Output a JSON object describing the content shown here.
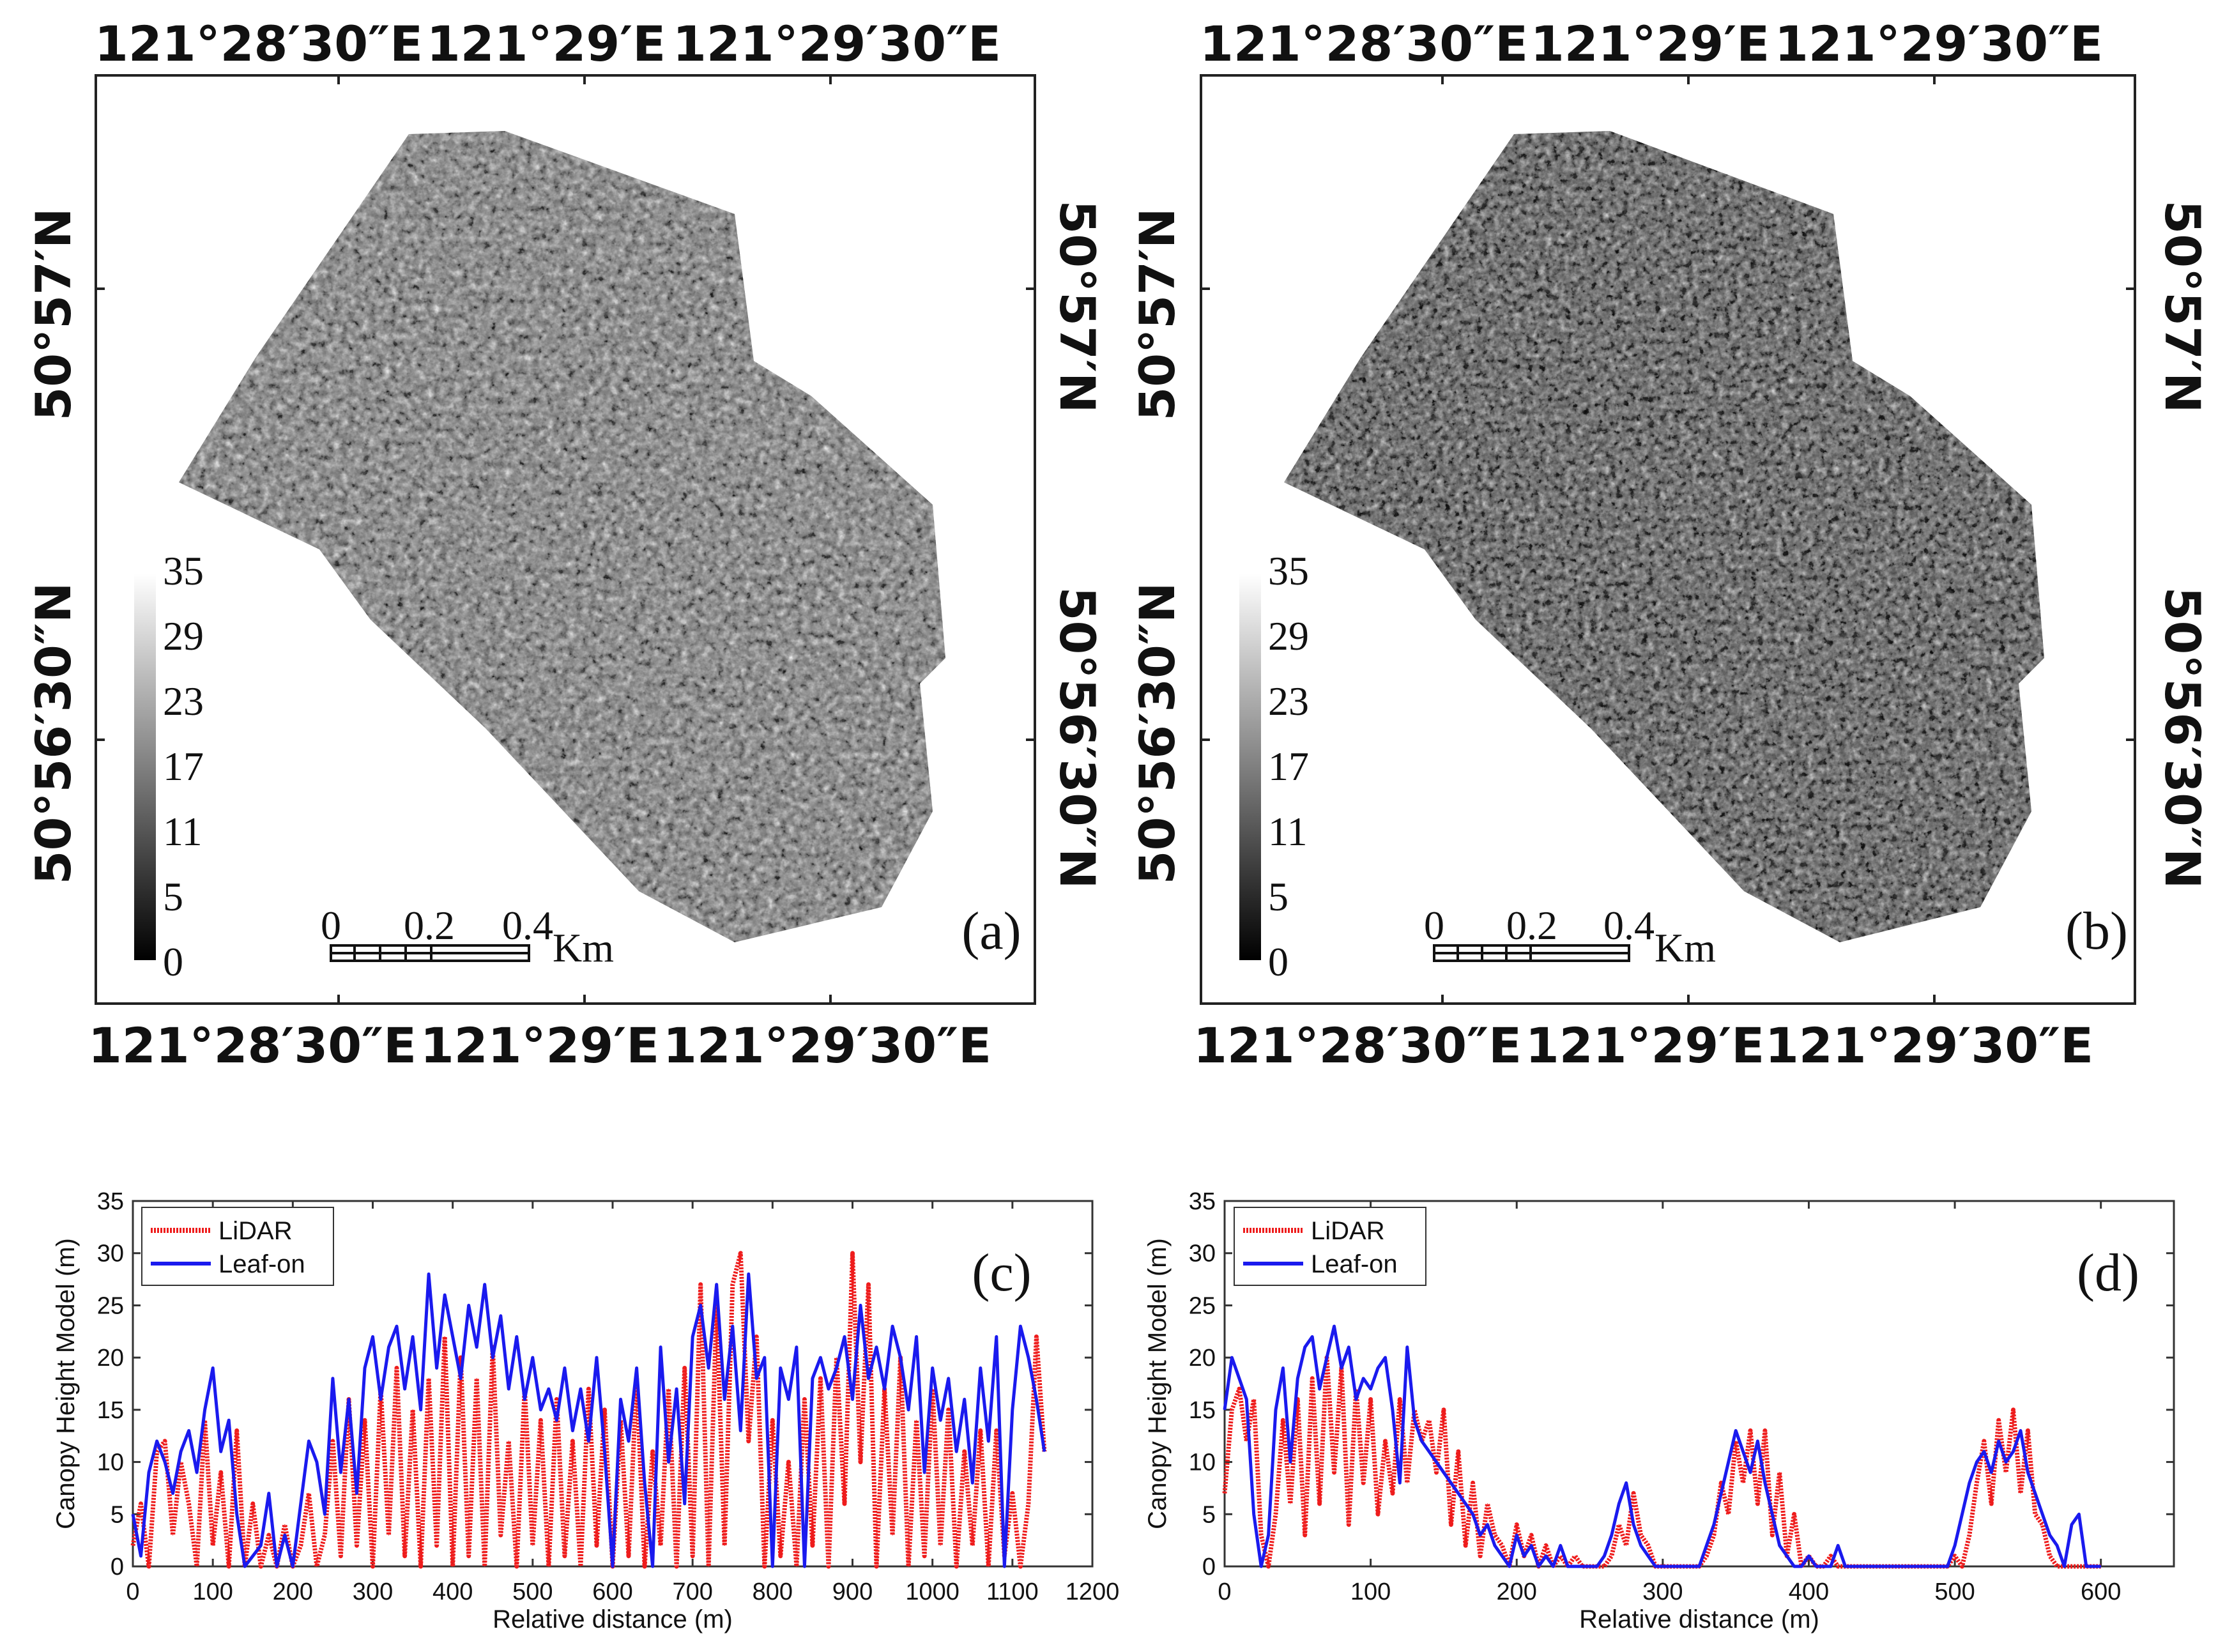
{
  "map_panels": [
    {
      "panel_label": "(a)",
      "top_lon_labels": [
        "121°28′30″E",
        "121°29′E",
        "121°29′30″E"
      ],
      "bottom_lon_labels": [
        "121°28′30″E",
        "121°29′E",
        "121°29′30″E"
      ],
      "left_lat_labels": [
        "50°57′N",
        "50°56′30″N"
      ],
      "right_lat_labels": [
        "50°57′N",
        "50°56′30″N"
      ],
      "colorbar_ticks": [
        "35",
        "29",
        "23",
        "17",
        "11",
        "5",
        "0"
      ],
      "scalebar": {
        "ticks": [
          "0",
          "0.2",
          "0.4"
        ],
        "unit": "Km"
      }
    },
    {
      "panel_label": "(b)",
      "top_lon_labels": [
        "121°28′30″E",
        "121°29′E",
        "121°29′30″E"
      ],
      "bottom_lon_labels": [
        "121°28′30″E",
        "121°29′E",
        "121°29′30″E"
      ],
      "left_lat_labels": [
        "50°57′N",
        "50°56′30″N"
      ],
      "right_lat_labels": [
        "50°57′N",
        "50°56′30″N"
      ],
      "colorbar_ticks": [
        "35",
        "29",
        "23",
        "17",
        "11",
        "5",
        "0"
      ],
      "scalebar": {
        "ticks": [
          "0",
          "0.2",
          "0.4"
        ],
        "unit": "Km"
      }
    }
  ],
  "chart_data": [
    {
      "type": "line",
      "panel_label": "(c)",
      "xlabel": "Relative distance (m)",
      "ylabel": "Canopy Height Model (m)",
      "xlim": [
        0,
        1200
      ],
      "ylim": [
        0,
        35
      ],
      "xticks": [
        "0",
        "100",
        "200",
        "300",
        "400",
        "500",
        "600",
        "700",
        "800",
        "900",
        "1000",
        "1100",
        "1200"
      ],
      "yticks": [
        "0",
        "5",
        "10",
        "15",
        "20",
        "25",
        "30",
        "35"
      ],
      "legend": [
        "LiDAR",
        "Leaf-on"
      ],
      "legend_position": "top-left",
      "series": [
        {
          "name": "LiDAR",
          "color": "#ee1c1c",
          "style": "dotted",
          "x": [
            0,
            10,
            20,
            30,
            40,
            50,
            60,
            70,
            80,
            90,
            100,
            110,
            120,
            130,
            140,
            150,
            160,
            170,
            180,
            190,
            200,
            210,
            220,
            230,
            240,
            250,
            260,
            270,
            280,
            290,
            300,
            310,
            320,
            330,
            340,
            350,
            360,
            370,
            380,
            390,
            400,
            410,
            420,
            430,
            440,
            450,
            460,
            470,
            480,
            490,
            500,
            510,
            520,
            530,
            540,
            550,
            560,
            570,
            580,
            590,
            600,
            610,
            620,
            630,
            640,
            650,
            660,
            670,
            680,
            690,
            700,
            710,
            720,
            730,
            740,
            750,
            760,
            770,
            780,
            790,
            800,
            810,
            820,
            830,
            840,
            850,
            860,
            870,
            880,
            890,
            900,
            910,
            920,
            930,
            940,
            950,
            960,
            970,
            980,
            990,
            1000,
            1010,
            1020,
            1030,
            1040,
            1050,
            1060,
            1070,
            1080,
            1090,
            1100,
            1110,
            1120,
            1130,
            1140
          ],
          "y": [
            2,
            6,
            0,
            11,
            12,
            3,
            10,
            6,
            0,
            14,
            2,
            9,
            0,
            13,
            0,
            6,
            0,
            3,
            0,
            4,
            0,
            2,
            7,
            0,
            3,
            12,
            1,
            16,
            2,
            14,
            0,
            17,
            3,
            19,
            1,
            15,
            0,
            18,
            2,
            22,
            0,
            20,
            1,
            18,
            0,
            21,
            3,
            12,
            0,
            17,
            2,
            14,
            0,
            16,
            1,
            12,
            0,
            17,
            2,
            15,
            0,
            14,
            1,
            18,
            0,
            11,
            2,
            17,
            0,
            19,
            1,
            27,
            0,
            25,
            2,
            27,
            30,
            12,
            22,
            0,
            14,
            1,
            10,
            0,
            16,
            2,
            18,
            0,
            20,
            6,
            30,
            10,
            27,
            0,
            17,
            3,
            20,
            0,
            14,
            1,
            17,
            2,
            15,
            0,
            11,
            2,
            13,
            0,
            13,
            1,
            7,
            0,
            6,
            22,
            11
          ]
        },
        {
          "name": "Leaf-on",
          "color": "#1a1aee",
          "style": "solid",
          "x": [
            0,
            10,
            20,
            30,
            40,
            50,
            60,
            70,
            80,
            90,
            100,
            110,
            120,
            130,
            140,
            150,
            160,
            170,
            180,
            190,
            200,
            210,
            220,
            230,
            240,
            250,
            260,
            270,
            280,
            290,
            300,
            310,
            320,
            330,
            340,
            350,
            360,
            370,
            380,
            390,
            400,
            410,
            420,
            430,
            440,
            450,
            460,
            470,
            480,
            490,
            500,
            510,
            520,
            530,
            540,
            550,
            560,
            570,
            580,
            590,
            600,
            610,
            620,
            630,
            640,
            650,
            660,
            670,
            680,
            690,
            700,
            710,
            720,
            730,
            740,
            750,
            760,
            770,
            780,
            790,
            800,
            810,
            820,
            830,
            840,
            850,
            860,
            870,
            880,
            890,
            900,
            910,
            920,
            930,
            940,
            950,
            960,
            970,
            980,
            990,
            1000,
            1010,
            1020,
            1030,
            1040,
            1050,
            1060,
            1070,
            1080,
            1090,
            1100,
            1110,
            1120,
            1130,
            1140
          ],
          "y": [
            5,
            1,
            9,
            12,
            10,
            7,
            11,
            13,
            9,
            15,
            19,
            11,
            14,
            5,
            0,
            1,
            2,
            7,
            0,
            3,
            0,
            6,
            12,
            10,
            5,
            18,
            9,
            16,
            7,
            19,
            22,
            16,
            21,
            23,
            17,
            22,
            15,
            28,
            19,
            26,
            22,
            18,
            25,
            21,
            27,
            20,
            24,
            17,
            22,
            16,
            20,
            15,
            17,
            14,
            19,
            13,
            17,
            12,
            20,
            11,
            0,
            16,
            12,
            19,
            8,
            0,
            21,
            10,
            17,
            6,
            22,
            25,
            19,
            27,
            16,
            23,
            13,
            28,
            18,
            20,
            0,
            19,
            16,
            21,
            0,
            18,
            20,
            17,
            19,
            22,
            16,
            25,
            18,
            21,
            17,
            23,
            20,
            15,
            22,
            9,
            19,
            14,
            18,
            11,
            16,
            8,
            19,
            12,
            22,
            0,
            15,
            23,
            20,
            16,
            11
          ]
        }
      ]
    },
    {
      "type": "line",
      "panel_label": "(d)",
      "xlabel": "Relative distance (m)",
      "ylabel": "Canopy Height Model (m)",
      "xlim": [
        0,
        650
      ],
      "ylim": [
        0,
        35
      ],
      "xticks": [
        "0",
        "100",
        "200",
        "300",
        "400",
        "500",
        "600"
      ],
      "yticks": [
        "0",
        "5",
        "10",
        "15",
        "20",
        "25",
        "30",
        "35"
      ],
      "legend": [
        "LiDAR",
        "Leaf-on"
      ],
      "legend_position": "top-left",
      "series": [
        {
          "name": "LiDAR",
          "color": "#ee1c1c",
          "style": "dotted",
          "x": [
            0,
            5,
            10,
            15,
            20,
            25,
            30,
            35,
            40,
            45,
            50,
            55,
            60,
            65,
            70,
            75,
            80,
            85,
            90,
            95,
            100,
            105,
            110,
            115,
            120,
            125,
            130,
            135,
            140,
            145,
            150,
            155,
            160,
            165,
            170,
            175,
            180,
            185,
            190,
            195,
            200,
            205,
            210,
            215,
            220,
            225,
            230,
            235,
            240,
            245,
            250,
            255,
            260,
            265,
            270,
            275,
            280,
            285,
            290,
            295,
            300,
            305,
            310,
            315,
            320,
            325,
            330,
            335,
            340,
            345,
            350,
            355,
            360,
            365,
            370,
            375,
            380,
            385,
            390,
            395,
            400,
            405,
            410,
            415,
            420,
            425,
            430,
            435,
            440,
            445,
            450,
            455,
            460,
            465,
            470,
            475,
            480,
            485,
            490,
            495,
            500,
            505,
            510,
            515,
            520,
            525,
            530,
            535,
            540,
            545,
            550,
            555,
            560,
            565,
            570,
            575,
            580,
            585,
            590,
            600
          ],
          "y": [
            7,
            15,
            17,
            12,
            16,
            3,
            0,
            5,
            14,
            6,
            16,
            3,
            18,
            6,
            20,
            9,
            19,
            4,
            17,
            8,
            16,
            5,
            12,
            7,
            16,
            8,
            15,
            12,
            14,
            9,
            15,
            4,
            11,
            2,
            8,
            1,
            6,
            3,
            2,
            0,
            4,
            1,
            3,
            0,
            2,
            0,
            1,
            0,
            1,
            0,
            0,
            0,
            0,
            1,
            4,
            2,
            7,
            3,
            2,
            0,
            0,
            0,
            0,
            0,
            0,
            0,
            1,
            3,
            8,
            5,
            12,
            8,
            13,
            6,
            13,
            3,
            9,
            1,
            5,
            0,
            1,
            0,
            0,
            1,
            0,
            0,
            0,
            0,
            0,
            0,
            0,
            0,
            0,
            0,
            0,
            0,
            0,
            0,
            0,
            0,
            1,
            0,
            3,
            8,
            12,
            6,
            14,
            9,
            15,
            7,
            13,
            5,
            4,
            1,
            0,
            0,
            0,
            0,
            0,
            0
          ]
        },
        {
          "name": "Leaf-on",
          "color": "#1a1aee",
          "style": "solid",
          "x": [
            0,
            5,
            10,
            15,
            20,
            25,
            30,
            35,
            40,
            45,
            50,
            55,
            60,
            65,
            70,
            75,
            80,
            85,
            90,
            95,
            100,
            105,
            110,
            115,
            120,
            125,
            130,
            135,
            140,
            145,
            150,
            155,
            160,
            165,
            170,
            175,
            180,
            185,
            190,
            195,
            200,
            205,
            210,
            215,
            220,
            225,
            230,
            235,
            240,
            245,
            250,
            255,
            260,
            265,
            270,
            275,
            280,
            285,
            290,
            295,
            300,
            305,
            310,
            315,
            320,
            325,
            330,
            335,
            340,
            345,
            350,
            355,
            360,
            365,
            370,
            375,
            380,
            385,
            390,
            395,
            400,
            405,
            410,
            415,
            420,
            425,
            430,
            435,
            440,
            445,
            450,
            455,
            460,
            465,
            470,
            475,
            480,
            485,
            490,
            495,
            500,
            505,
            510,
            515,
            520,
            525,
            530,
            535,
            540,
            545,
            550,
            555,
            560,
            565,
            570,
            575,
            580,
            585,
            590,
            600
          ],
          "y": [
            15,
            20,
            18,
            16,
            5,
            0,
            3,
            15,
            19,
            10,
            18,
            21,
            22,
            17,
            20,
            23,
            19,
            21,
            16,
            18,
            17,
            19,
            20,
            15,
            8,
            21,
            14,
            12,
            11,
            10,
            9,
            8,
            7,
            6,
            5,
            3,
            4,
            2,
            1,
            0,
            3,
            1,
            2,
            0,
            1,
            0,
            2,
            0,
            0,
            0,
            0,
            0,
            1,
            3,
            6,
            8,
            4,
            2,
            1,
            0,
            0,
            0,
            0,
            0,
            0,
            0,
            2,
            4,
            7,
            10,
            13,
            11,
            9,
            12,
            8,
            5,
            2,
            1,
            0,
            0,
            1,
            0,
            0,
            0,
            2,
            0,
            0,
            0,
            0,
            0,
            0,
            0,
            0,
            0,
            0,
            0,
            0,
            0,
            0,
            0,
            2,
            5,
            8,
            10,
            11,
            9,
            12,
            10,
            11,
            13,
            9,
            7,
            5,
            3,
            2,
            0,
            4,
            5,
            0,
            0
          ]
        }
      ]
    }
  ]
}
